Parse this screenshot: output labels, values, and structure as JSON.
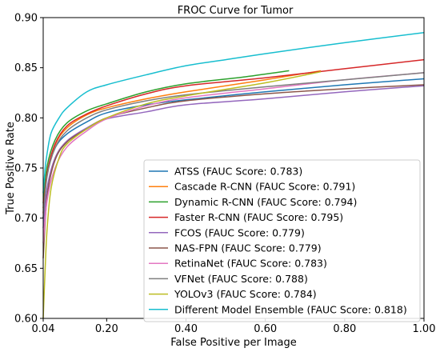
{
  "chart_data": {
    "type": "line",
    "title": "FROC Curve for Tumor",
    "xlabel": "False Positive per Image",
    "ylabel": "True Positive Rate",
    "xlim": [
      0.04,
      1.0
    ],
    "ylim": [
      0.6,
      0.9
    ],
    "xticks": [
      "0.04",
      "0.20",
      "0.40",
      "0.60",
      "0.80",
      "1.00"
    ],
    "xtick_values": [
      0.04,
      0.2,
      0.4,
      0.6,
      0.8,
      1.0
    ],
    "yticks": [
      "0.60",
      "0.65",
      "0.70",
      "0.75",
      "0.80",
      "0.85",
      "0.90"
    ],
    "ytick_values": [
      0.6,
      0.65,
      0.7,
      0.75,
      0.8,
      0.85,
      0.9
    ],
    "grid": false,
    "legend_position": "lower-right",
    "series": [
      {
        "name": "ATSS (FAUC Score: 0.783)",
        "color": "#1f77b4",
        "points": [
          [
            0.04,
            0.7
          ],
          [
            0.05,
            0.745
          ],
          [
            0.07,
            0.77
          ],
          [
            0.1,
            0.784
          ],
          [
            0.15,
            0.796
          ],
          [
            0.2,
            0.805
          ],
          [
            0.3,
            0.813
          ],
          [
            0.4,
            0.818
          ],
          [
            0.6,
            0.826
          ],
          [
            0.8,
            0.833
          ],
          [
            1.0,
            0.839
          ]
        ]
      },
      {
        "name": "Cascade R-CNN (FAUC Score: 0.791)",
        "color": "#ff7f0e",
        "points": [
          [
            0.04,
            0.71
          ],
          [
            0.05,
            0.745
          ],
          [
            0.07,
            0.773
          ],
          [
            0.1,
            0.79
          ],
          [
            0.15,
            0.803
          ],
          [
            0.2,
            0.81
          ],
          [
            0.3,
            0.819
          ],
          [
            0.4,
            0.826
          ],
          [
            0.6,
            0.838
          ],
          [
            0.74,
            0.847
          ]
        ]
      },
      {
        "name": "Dynamic R-CNN (FAUC Score: 0.794)",
        "color": "#2ca02c",
        "points": [
          [
            0.04,
            0.715
          ],
          [
            0.05,
            0.752
          ],
          [
            0.07,
            0.778
          ],
          [
            0.1,
            0.795
          ],
          [
            0.15,
            0.807
          ],
          [
            0.2,
            0.814
          ],
          [
            0.3,
            0.826
          ],
          [
            0.4,
            0.834
          ],
          [
            0.55,
            0.841
          ],
          [
            0.66,
            0.847
          ]
        ]
      },
      {
        "name": "Faster R-CNN (FAUC Score: 0.795)",
        "color": "#d62728",
        "points": [
          [
            0.04,
            0.705
          ],
          [
            0.05,
            0.745
          ],
          [
            0.07,
            0.774
          ],
          [
            0.1,
            0.792
          ],
          [
            0.15,
            0.804
          ],
          [
            0.2,
            0.812
          ],
          [
            0.3,
            0.824
          ],
          [
            0.4,
            0.832
          ],
          [
            0.6,
            0.84
          ],
          [
            0.8,
            0.849
          ],
          [
            1.0,
            0.858
          ]
        ]
      },
      {
        "name": "FCOS (FAUC Score: 0.779)",
        "color": "#9467bd",
        "points": [
          [
            0.04,
            0.69
          ],
          [
            0.05,
            0.73
          ],
          [
            0.07,
            0.76
          ],
          [
            0.1,
            0.777
          ],
          [
            0.15,
            0.79
          ],
          [
            0.2,
            0.799
          ],
          [
            0.3,
            0.806
          ],
          [
            0.4,
            0.813
          ],
          [
            0.6,
            0.819
          ],
          [
            0.8,
            0.826
          ],
          [
            1.0,
            0.832
          ]
        ]
      },
      {
        "name": "NAS-FPN (FAUC Score: 0.779)",
        "color": "#8c564b",
        "points": [
          [
            0.04,
            0.66
          ],
          [
            0.05,
            0.722
          ],
          [
            0.07,
            0.758
          ],
          [
            0.1,
            0.776
          ],
          [
            0.15,
            0.789
          ],
          [
            0.2,
            0.8
          ],
          [
            0.3,
            0.81
          ],
          [
            0.4,
            0.817
          ],
          [
            0.6,
            0.824
          ],
          [
            0.8,
            0.829
          ],
          [
            1.0,
            0.833
          ]
        ]
      },
      {
        "name": "RetinaNet (FAUC Score: 0.783)",
        "color": "#e377c2",
        "points": [
          [
            0.04,
            0.675
          ],
          [
            0.05,
            0.718
          ],
          [
            0.07,
            0.75
          ],
          [
            0.1,
            0.771
          ],
          [
            0.15,
            0.787
          ],
          [
            0.2,
            0.799
          ],
          [
            0.3,
            0.812
          ],
          [
            0.4,
            0.82
          ],
          [
            0.6,
            0.829
          ],
          [
            0.8,
            0.838
          ],
          [
            1.0,
            0.845
          ]
        ]
      },
      {
        "name": "VFNet (FAUC Score: 0.788)",
        "color": "#7f7f7f",
        "points": [
          [
            0.04,
            0.7
          ],
          [
            0.05,
            0.742
          ],
          [
            0.07,
            0.77
          ],
          [
            0.1,
            0.787
          ],
          [
            0.15,
            0.8
          ],
          [
            0.2,
            0.808
          ],
          [
            0.3,
            0.817
          ],
          [
            0.4,
            0.823
          ],
          [
            0.6,
            0.831
          ],
          [
            0.8,
            0.838
          ],
          [
            1.0,
            0.845
          ]
        ]
      },
      {
        "name": "YOLOv3 (FAUC Score: 0.784)",
        "color": "#bcbd22",
        "points": [
          [
            0.04,
            0.6
          ],
          [
            0.045,
            0.65
          ],
          [
            0.05,
            0.69
          ],
          [
            0.06,
            0.73
          ],
          [
            0.08,
            0.76
          ],
          [
            0.1,
            0.774
          ],
          [
            0.15,
            0.789
          ],
          [
            0.2,
            0.8
          ],
          [
            0.3,
            0.814
          ],
          [
            0.4,
            0.822
          ],
          [
            0.6,
            0.835
          ],
          [
            0.74,
            0.846
          ]
        ]
      },
      {
        "name": "Different Model Ensemble (FAUC Score: 0.818)",
        "color": "#17becf",
        "points": [
          [
            0.04,
            0.725
          ],
          [
            0.045,
            0.75
          ],
          [
            0.05,
            0.765
          ],
          [
            0.06,
            0.785
          ],
          [
            0.08,
            0.8
          ],
          [
            0.1,
            0.81
          ],
          [
            0.15,
            0.826
          ],
          [
            0.2,
            0.833
          ],
          [
            0.3,
            0.843
          ],
          [
            0.4,
            0.852
          ],
          [
            0.5,
            0.858
          ],
          [
            0.6,
            0.864
          ],
          [
            0.8,
            0.875
          ],
          [
            1.0,
            0.885
          ]
        ]
      }
    ]
  }
}
